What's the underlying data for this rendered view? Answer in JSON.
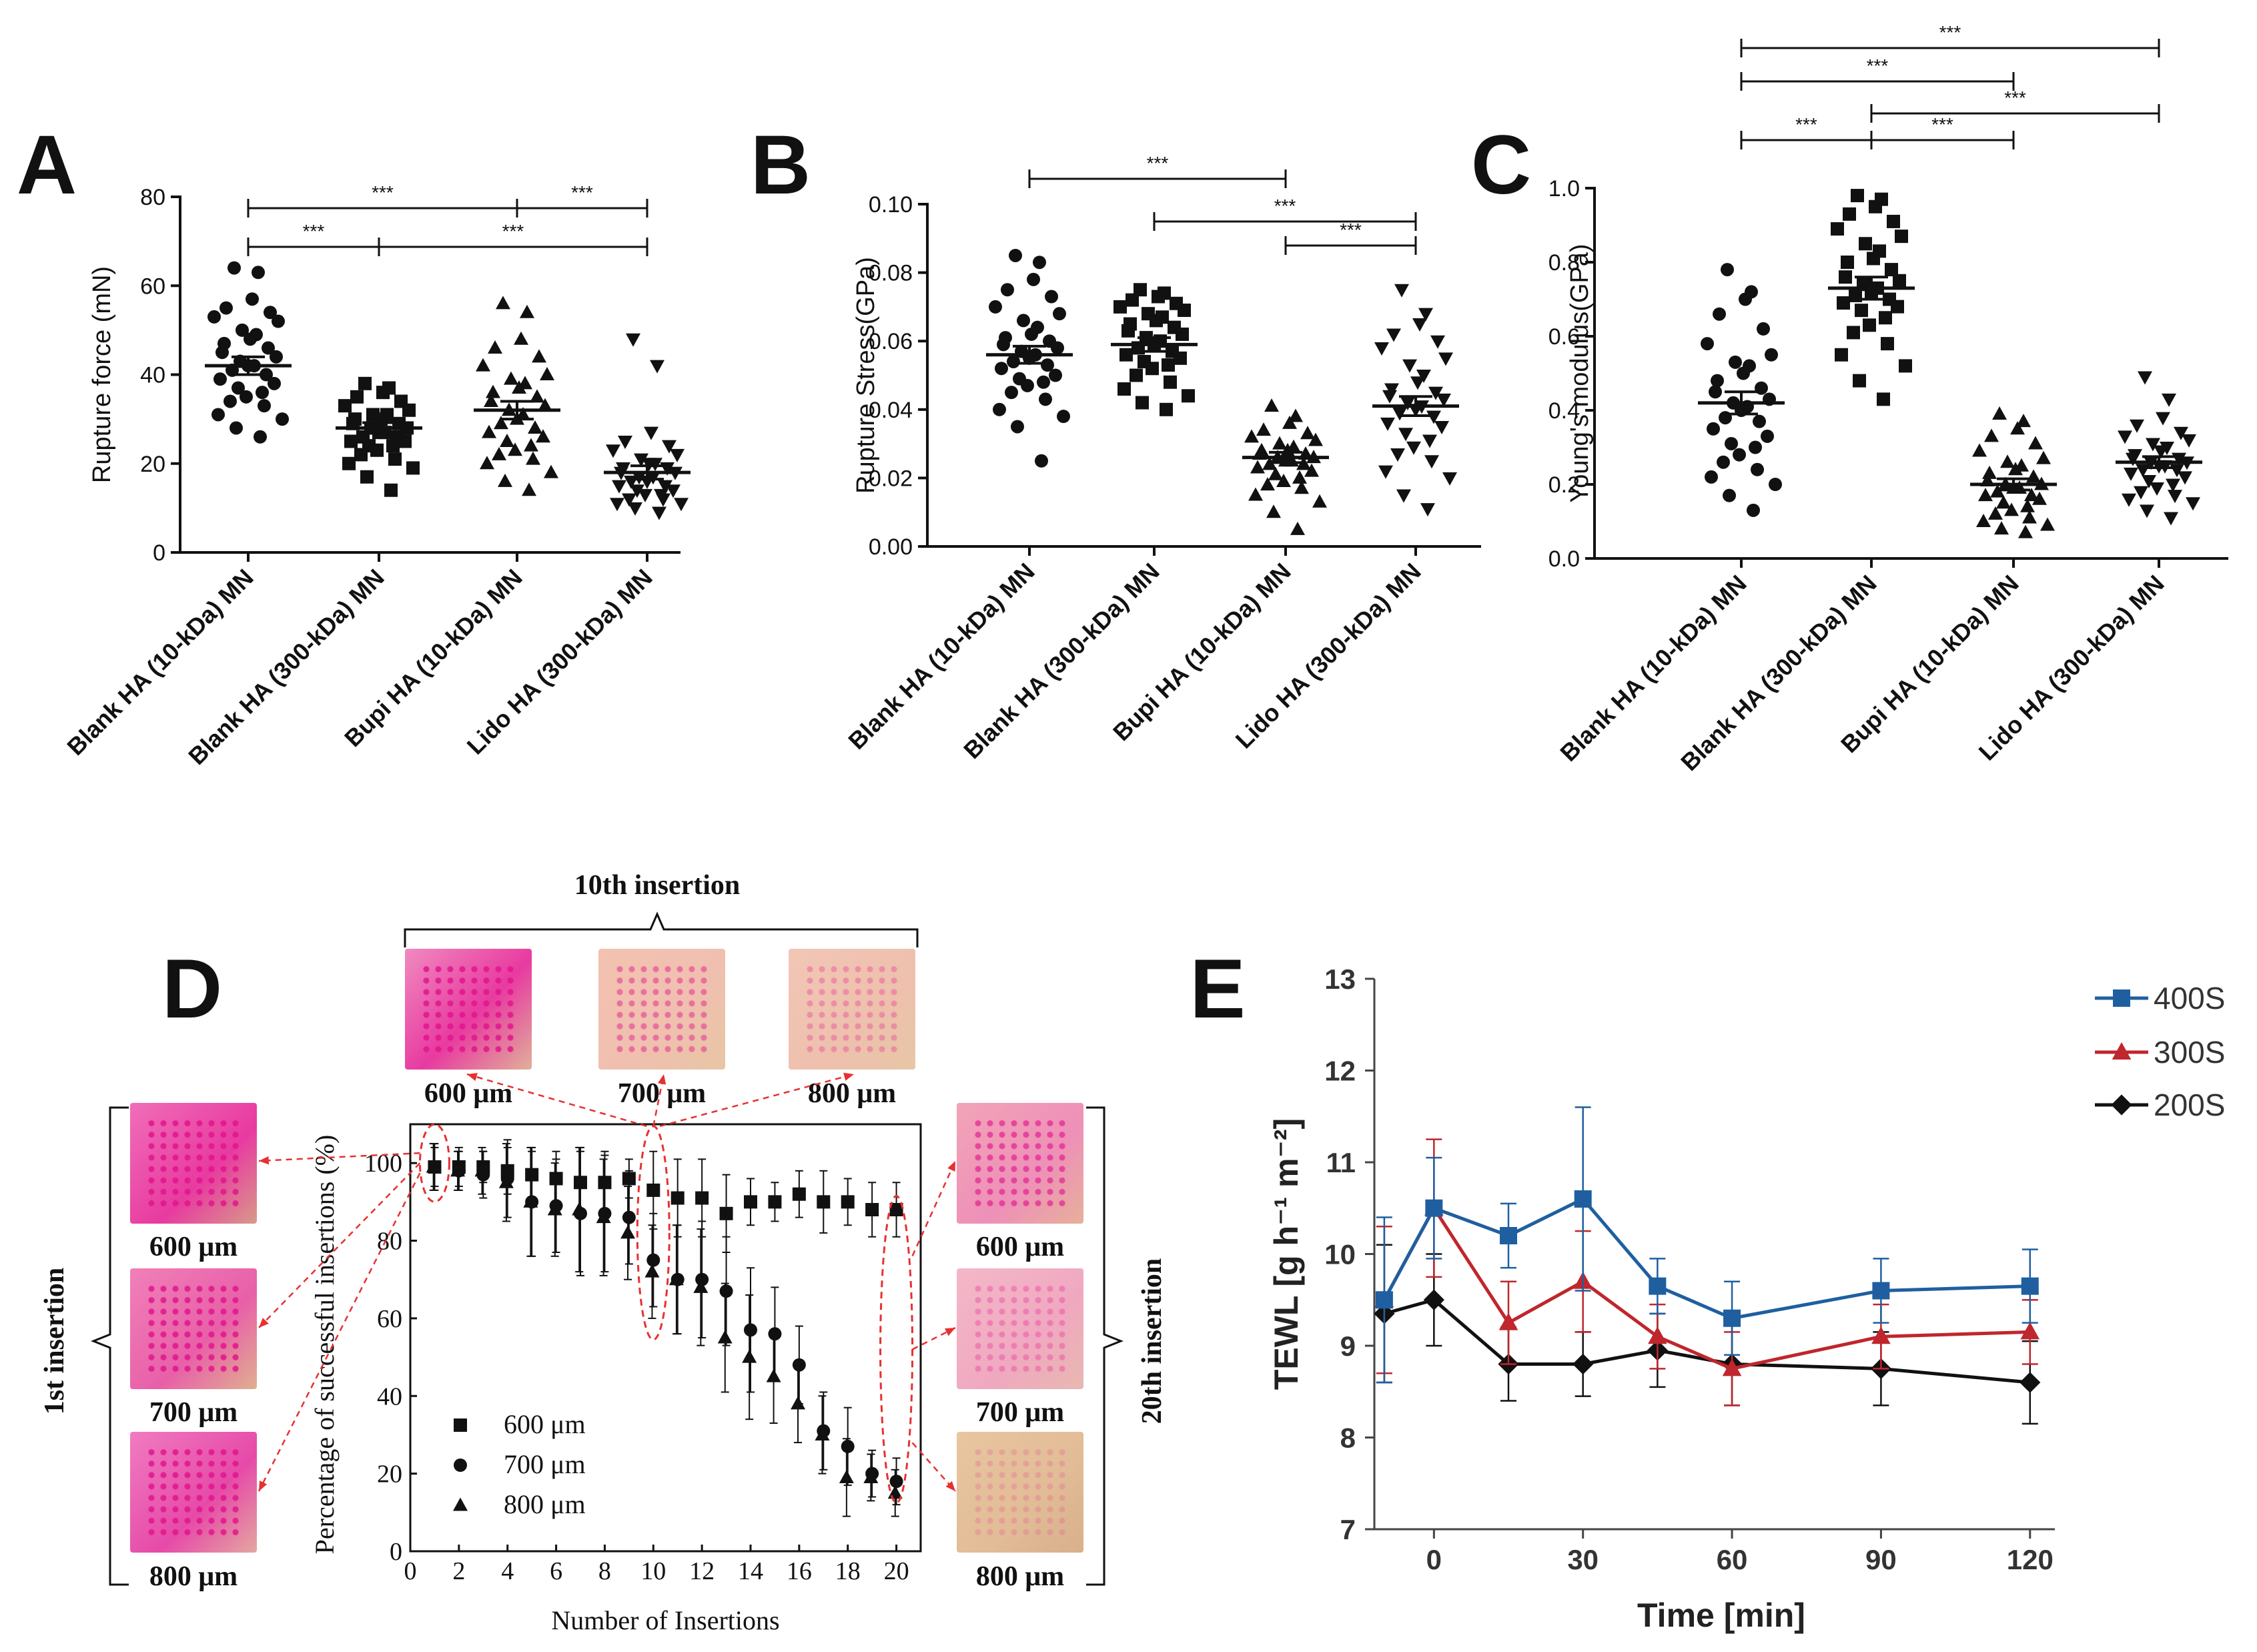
{
  "panels": {
    "A": {
      "letter": "A",
      "ylabel": "Rupture force (mN)",
      "ylim": [
        0,
        80
      ],
      "yticks": [
        "0",
        "20",
        "40",
        "60",
        "80"
      ],
      "categories": [
        "Blank HA (10-kDa) MN",
        "Blank HA (300-kDa) MN",
        "Bupi HA (10-kDa) MN",
        "Lido HA (300-kDa) MN"
      ],
      "markers": [
        "circle",
        "square",
        "triangle",
        "triangle-down"
      ],
      "means": [
        42,
        28,
        32,
        18
      ],
      "sems": [
        2,
        1.2,
        2,
        1.5
      ],
      "points": [
        [
          64,
          63,
          57,
          55,
          54,
          53,
          52,
          50,
          49,
          48,
          47,
          46,
          45,
          44,
          43,
          42,
          42,
          41,
          40,
          39,
          38,
          37,
          36,
          35,
          34,
          33,
          31,
          30,
          28,
          26
        ],
        [
          38,
          37,
          36,
          35,
          34,
          33,
          32,
          31,
          31,
          30,
          30,
          29,
          29,
          28,
          28,
          27,
          27,
          26,
          26,
          25,
          25,
          24,
          24,
          23,
          22,
          21,
          20,
          19,
          17,
          14
        ],
        [
          56,
          54,
          48,
          46,
          44,
          42,
          40,
          39,
          38,
          37,
          36,
          35,
          34,
          33,
          32,
          31,
          30,
          29,
          28,
          27,
          26,
          25,
          24,
          23,
          22,
          21,
          20,
          18,
          16,
          14
        ],
        [
          48,
          42,
          27,
          25,
          24,
          23,
          22,
          21,
          20,
          20,
          19,
          19,
          18,
          18,
          17,
          17,
          16,
          16,
          15,
          15,
          14,
          14,
          13,
          13,
          12,
          12,
          11,
          11,
          10,
          9
        ]
      ],
      "sig": [
        {
          "from": 0,
          "to": 2,
          "level": 2,
          "label": "***"
        },
        {
          "from": 2,
          "to": 3,
          "level": 2,
          "label": "***"
        },
        {
          "from": 0,
          "to": 1,
          "level": 1,
          "label": "***"
        },
        {
          "from": 1,
          "to": 3,
          "level": 1,
          "label": "***"
        }
      ]
    },
    "B": {
      "letter": "B",
      "ylabel": "Rupture Stress(GPa)",
      "ylim": [
        0,
        0.1
      ],
      "yticks": [
        "0.00",
        "0.02",
        "0.04",
        "0.06",
        "0.08",
        "0.10"
      ],
      "categories": [
        "Blank HA (10-kDa) MN",
        "Blank HA (300-kDa) MN",
        "Bupi HA (10-kDa) MN",
        "Lido HA (300-kDa) MN"
      ],
      "markers": [
        "circle",
        "square",
        "triangle",
        "triangle-down"
      ],
      "means": [
        0.056,
        0.059,
        0.026,
        0.041
      ],
      "sems": [
        0.0025,
        0.002,
        0.0015,
        0.0028
      ],
      "points": [
        [
          0.085,
          0.083,
          0.078,
          0.075,
          0.073,
          0.07,
          0.068,
          0.066,
          0.064,
          0.062,
          0.061,
          0.06,
          0.059,
          0.058,
          0.057,
          0.056,
          0.055,
          0.054,
          0.053,
          0.052,
          0.05,
          0.049,
          0.048,
          0.047,
          0.045,
          0.043,
          0.04,
          0.038,
          0.035,
          0.025
        ],
        [
          0.075,
          0.074,
          0.073,
          0.072,
          0.071,
          0.07,
          0.069,
          0.068,
          0.067,
          0.066,
          0.065,
          0.064,
          0.063,
          0.062,
          0.061,
          0.06,
          0.059,
          0.058,
          0.057,
          0.056,
          0.055,
          0.054,
          0.053,
          0.052,
          0.05,
          0.048,
          0.046,
          0.044,
          0.042,
          0.04
        ],
        [
          0.041,
          0.038,
          0.036,
          0.034,
          0.033,
          0.032,
          0.031,
          0.03,
          0.029,
          0.028,
          0.028,
          0.027,
          0.027,
          0.026,
          0.026,
          0.025,
          0.025,
          0.024,
          0.024,
          0.023,
          0.022,
          0.021,
          0.02,
          0.019,
          0.018,
          0.017,
          0.015,
          0.013,
          0.01,
          0.005
        ],
        [
          0.075,
          0.068,
          0.065,
          0.062,
          0.06,
          0.058,
          0.055,
          0.053,
          0.05,
          0.048,
          0.046,
          0.045,
          0.044,
          0.043,
          0.042,
          0.041,
          0.04,
          0.039,
          0.038,
          0.036,
          0.035,
          0.033,
          0.031,
          0.029,
          0.027,
          0.025,
          0.022,
          0.02,
          0.015,
          0.011
        ]
      ],
      "sig": [
        {
          "from": 0,
          "to": 2,
          "level": 3,
          "label": "***"
        },
        {
          "from": 1,
          "to": 3,
          "level": 2,
          "label": "***"
        },
        {
          "from": 2,
          "to": 3,
          "level": 1,
          "label": "***"
        }
      ]
    },
    "C": {
      "letter": "C",
      "ylabel": "Young's modulus(GPa)",
      "ylim": [
        0,
        1.0
      ],
      "yticks": [
        "0.0",
        "0.2",
        "0.4",
        "0.6",
        "0.8",
        "1.0"
      ],
      "categories": [
        "Blank HA (10-kDa) MN",
        "Blank HA (300-kDa) MN",
        "Bupi HA (10-kDa) MN",
        "Lido HA (300-kDa) MN"
      ],
      "markers": [
        "circle",
        "square",
        "triangle",
        "triangle-down"
      ],
      "means": [
        0.42,
        0.73,
        0.2,
        0.26
      ],
      "sems": [
        0.03,
        0.03,
        0.015,
        0.015
      ],
      "points": [
        [
          0.78,
          0.72,
          0.7,
          0.66,
          0.62,
          0.58,
          0.55,
          0.53,
          0.52,
          0.5,
          0.48,
          0.46,
          0.45,
          0.43,
          0.42,
          0.41,
          0.4,
          0.38,
          0.37,
          0.35,
          0.33,
          0.31,
          0.3,
          0.28,
          0.26,
          0.24,
          0.22,
          0.2,
          0.17,
          0.13
        ],
        [
          0.98,
          0.97,
          0.95,
          0.93,
          0.91,
          0.89,
          0.87,
          0.85,
          0.83,
          0.81,
          0.8,
          0.78,
          0.76,
          0.75,
          0.74,
          0.73,
          0.72,
          0.71,
          0.7,
          0.69,
          0.68,
          0.67,
          0.65,
          0.63,
          0.61,
          0.58,
          0.55,
          0.52,
          0.48,
          0.43
        ],
        [
          0.39,
          0.37,
          0.35,
          0.33,
          0.31,
          0.29,
          0.27,
          0.26,
          0.25,
          0.24,
          0.23,
          0.22,
          0.21,
          0.2,
          0.2,
          0.19,
          0.19,
          0.18,
          0.17,
          0.17,
          0.16,
          0.15,
          0.14,
          0.13,
          0.12,
          0.11,
          0.1,
          0.09,
          0.08,
          0.07
        ],
        [
          0.49,
          0.43,
          0.38,
          0.36,
          0.34,
          0.33,
          0.32,
          0.31,
          0.3,
          0.29,
          0.28,
          0.27,
          0.27,
          0.26,
          0.26,
          0.25,
          0.25,
          0.24,
          0.24,
          0.23,
          0.22,
          0.21,
          0.2,
          0.19,
          0.18,
          0.17,
          0.16,
          0.15,
          0.13,
          0.11
        ]
      ],
      "sig": [
        {
          "from": 0,
          "to": 3,
          "level": 4,
          "label": "***"
        },
        {
          "from": 0,
          "to": 2,
          "level": 3,
          "label": "***"
        },
        {
          "from": 1,
          "to": 3,
          "level": 2,
          "label": "***"
        },
        {
          "from": 0,
          "to": 1,
          "level": 1,
          "label": "***"
        },
        {
          "from": 1,
          "to": 2,
          "level": 1,
          "label": "***"
        }
      ]
    },
    "D": {
      "letter": "D",
      "ylabel": "Percentage of successful insertions (%)",
      "xlabel": "Number of Insertions",
      "xlim": [
        0,
        21
      ],
      "ylim": [
        0,
        110
      ],
      "xticks": [
        "0",
        "2",
        "4",
        "6",
        "8",
        "10",
        "12",
        "14",
        "16",
        "18",
        "20"
      ],
      "yticks": [
        "0",
        "20",
        "40",
        "60",
        "80",
        "100"
      ],
      "top_label": "10th insertion",
      "left_label": "1st insertion",
      "right_label": "20th insertion",
      "photo_labels": {
        "top": [
          "600 μm",
          "700 μm",
          "800 μm"
        ],
        "left": [
          "600 μm",
          "700 μm",
          "800 μm"
        ],
        "right": [
          "600 μm",
          "700 μm",
          "800 μm"
        ]
      }
    },
    "E": {
      "letter": "E",
      "ylabel": "TEWL [g h⁻¹ m⁻²]",
      "xlabel": "Time [min]",
      "xlim": [
        -12,
        125
      ],
      "ylim": [
        7,
        13
      ],
      "xticks": [
        "0",
        "30",
        "60",
        "90",
        "120"
      ],
      "yticks": [
        "7",
        "8",
        "9",
        "10",
        "11",
        "12",
        "13"
      ]
    }
  },
  "chart_data": [
    {
      "type": "scatter",
      "panel": "A",
      "ylabel": "Rupture force (mN)",
      "ylim": [
        0,
        80
      ],
      "categories": [
        "Blank HA (10-kDa) MN",
        "Blank HA (300-kDa) MN",
        "Bupi HA (10-kDa) MN",
        "Lido HA (300-kDa) MN"
      ],
      "means": [
        42,
        28,
        32,
        18
      ],
      "significance": "***"
    },
    {
      "type": "scatter",
      "panel": "B",
      "ylabel": "Rupture Stress(GPa)",
      "ylim": [
        0,
        0.1
      ],
      "categories": [
        "Blank HA (10-kDa) MN",
        "Blank HA (300-kDa) MN",
        "Bupi HA (10-kDa) MN",
        "Lido HA (300-kDa) MN"
      ],
      "means": [
        0.056,
        0.059,
        0.026,
        0.041
      ],
      "significance": "***"
    },
    {
      "type": "scatter",
      "panel": "C",
      "ylabel": "Young's modulus(GPa)",
      "ylim": [
        0,
        1.0
      ],
      "categories": [
        "Blank HA (10-kDa) MN",
        "Blank HA (300-kDa) MN",
        "Bupi HA (10-kDa) MN",
        "Lido HA (300-kDa) MN"
      ],
      "means": [
        0.42,
        0.73,
        0.2,
        0.26
      ],
      "significance": "***"
    },
    {
      "type": "scatter",
      "panel": "D",
      "xlabel": "Number of Insertions",
      "ylabel": "Percentage of successful insertions (%)",
      "x": [
        1,
        2,
        3,
        4,
        5,
        6,
        7,
        8,
        9,
        10,
        11,
        12,
        13,
        14,
        15,
        16,
        17,
        18,
        19,
        20
      ],
      "series": [
        {
          "name": "600 μm",
          "marker": "square",
          "values": [
            99,
            99,
            99,
            98,
            97,
            96,
            95,
            95,
            96,
            93,
            91,
            91,
            87,
            90,
            90,
            92,
            90,
            90,
            88,
            88
          ],
          "errors": [
            5,
            5,
            4,
            6,
            6,
            7,
            9,
            8,
            5,
            10,
            10,
            10,
            10,
            6,
            5,
            6,
            8,
            6,
            7,
            7
          ]
        },
        {
          "name": "700 μm",
          "marker": "circle",
          "values": [
            99,
            98,
            97,
            96,
            90,
            89,
            87,
            87,
            86,
            75,
            70,
            70,
            67,
            57,
            56,
            48,
            31,
            27,
            20,
            18
          ],
          "errors": [
            6,
            5,
            6,
            10,
            14,
            12,
            16,
            15,
            12,
            12,
            14,
            15,
            14,
            16,
            12,
            10,
            10,
            10,
            6,
            6
          ]
        },
        {
          "name": "800 μm",
          "marker": "triangle",
          "values": [
            99,
            98,
            98,
            95,
            90,
            88,
            88,
            86,
            82,
            72,
            70,
            68,
            55,
            50,
            45,
            38,
            30,
            19,
            19,
            15
          ],
          "errors": [
            6,
            5,
            6,
            10,
            14,
            12,
            16,
            15,
            12,
            12,
            14,
            15,
            14,
            16,
            12,
            10,
            10,
            10,
            6,
            6
          ]
        }
      ],
      "xlim": [
        0,
        21
      ],
      "ylim": [
        0,
        110
      ]
    },
    {
      "type": "line",
      "panel": "E",
      "xlabel": "Time [min]",
      "ylabel": "TEWL [g h⁻¹ m⁻²]",
      "x": [
        -10,
        0,
        15,
        30,
        45,
        60,
        90,
        120
      ],
      "series": [
        {
          "name": "400S",
          "color": "#1f5fa0",
          "marker": "square",
          "values": [
            9.5,
            10.5,
            10.2,
            10.6,
            9.65,
            9.3,
            9.6,
            9.65
          ],
          "errors": [
            0.9,
            0.55,
            0.35,
            1.0,
            0.3,
            0.4,
            0.35,
            0.4
          ]
        },
        {
          "name": "300S",
          "color": "#c0262d",
          "marker": "triangle",
          "values": [
            9.5,
            10.5,
            9.25,
            9.7,
            9.1,
            8.75,
            9.1,
            9.15
          ],
          "errors": [
            0.8,
            0.75,
            0.45,
            0.55,
            0.35,
            0.4,
            0.35,
            0.35
          ]
        },
        {
          "name": "200S",
          "color": "#111111",
          "marker": "diamond",
          "values": [
            9.35,
            9.5,
            8.8,
            8.8,
            8.95,
            8.8,
            8.75,
            8.6
          ],
          "errors": [
            0.75,
            0.5,
            0.4,
            0.35,
            0.4,
            0.45,
            0.4,
            0.45
          ]
        }
      ],
      "xlim": [
        -12,
        125
      ],
      "ylim": [
        7,
        13
      ]
    }
  ]
}
